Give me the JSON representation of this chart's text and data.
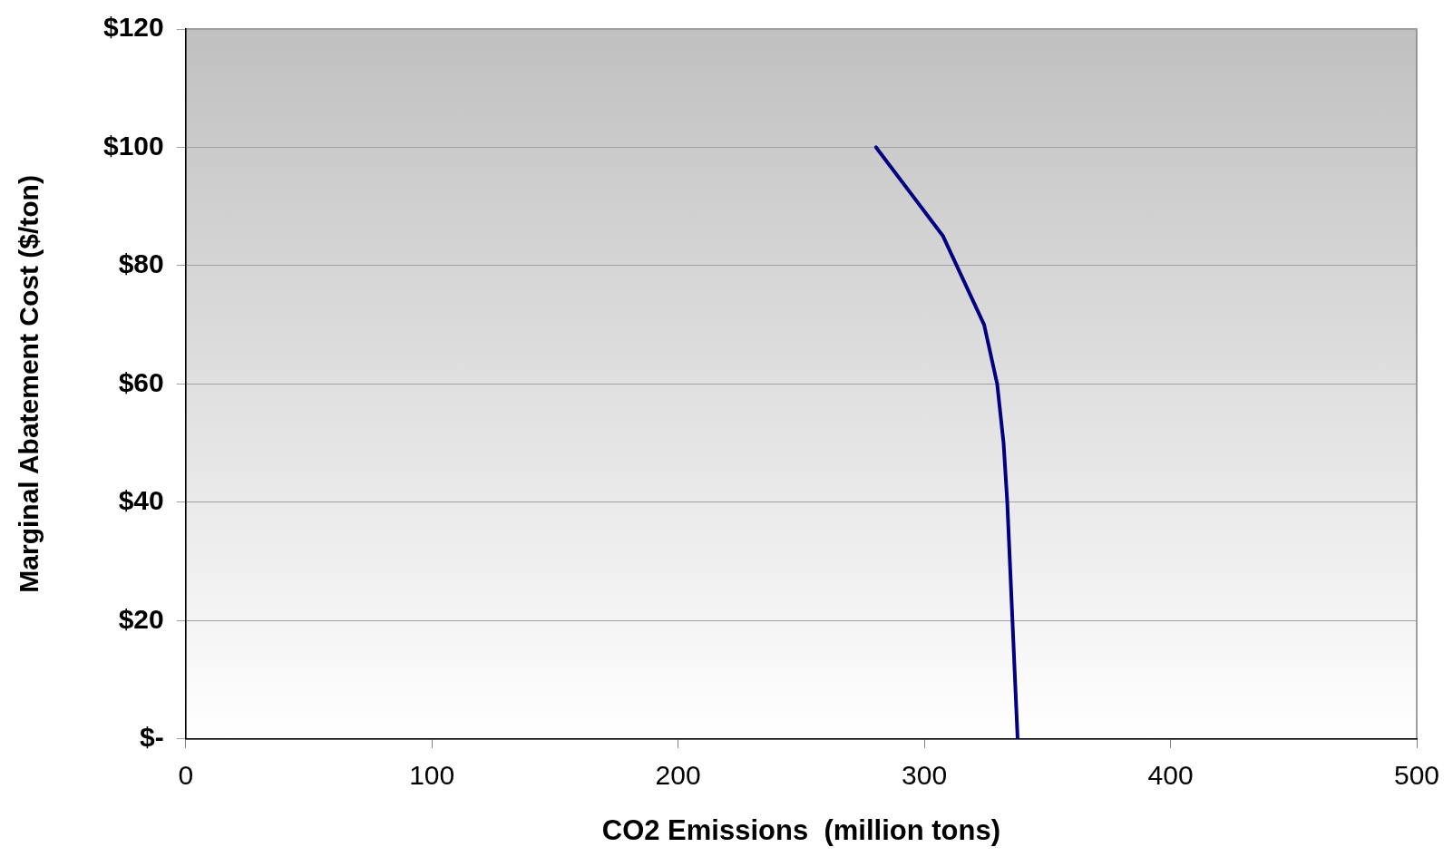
{
  "chart_data": {
    "type": "line",
    "xlabel": "CO2 Emissions  (million tons)",
    "ylabel": "Marginal Abatement Cost ($/ton)",
    "x": [
      280.4,
      307.6,
      324.3,
      329.6,
      332.2,
      333.7,
      337.9
    ],
    "series": [
      {
        "color": "#000080",
        "values": [
          100,
          85,
          70,
          60,
          50,
          40,
          0
        ]
      }
    ],
    "xlim": [
      0,
      500
    ],
    "xticks": [
      0,
      100,
      200,
      300,
      400,
      500
    ],
    "ylim": [
      0,
      120
    ],
    "yticks": [
      {
        "value": 0,
        "label": "$-"
      },
      {
        "value": 20,
        "label": "$20"
      },
      {
        "value": 40,
        "label": "$40"
      },
      {
        "value": 60,
        "label": "$60"
      },
      {
        "value": 80,
        "label": "$80"
      },
      {
        "value": 100,
        "label": "$100"
      },
      {
        "value": 120,
        "label": "$120"
      }
    ],
    "grid": "y",
    "legend": false,
    "marker": "none",
    "line_style": "solid"
  }
}
